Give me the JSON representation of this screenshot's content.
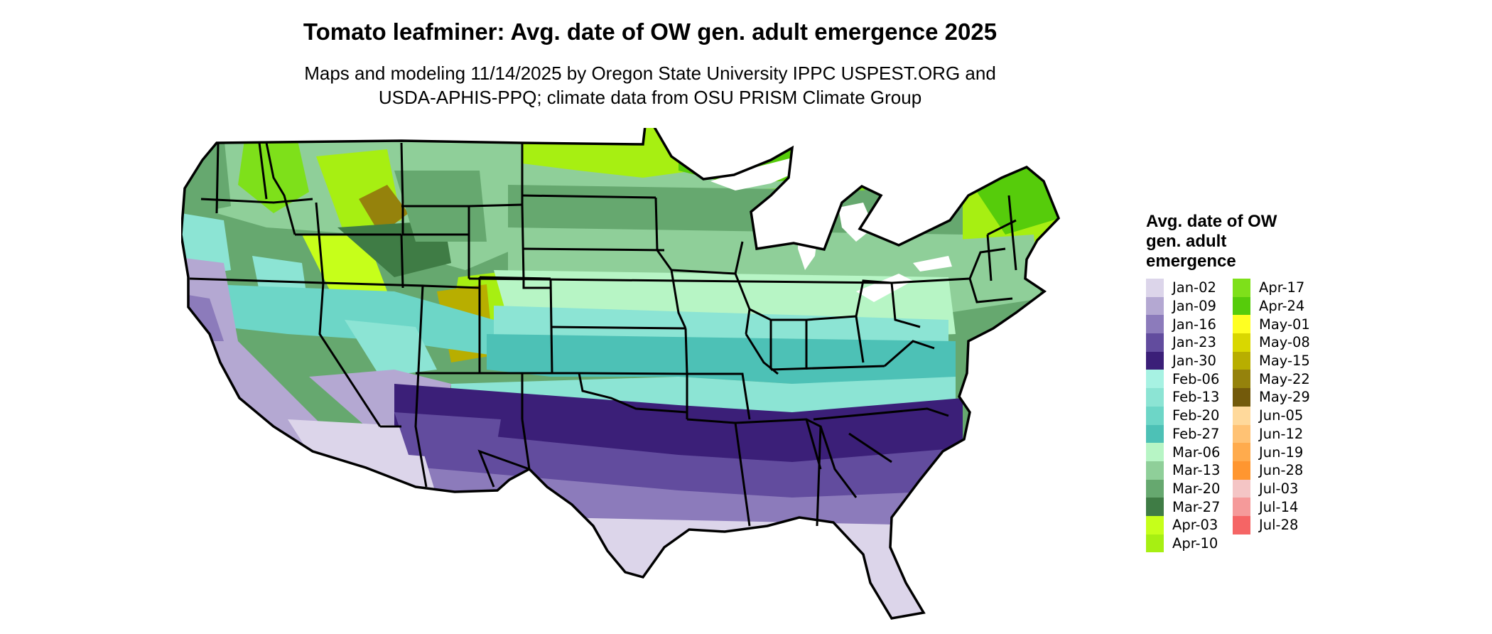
{
  "title": "Tomato leafminer: Avg. date of OW gen. adult emergence 2025",
  "subtitle": {
    "line1": "Maps and modeling 11/14/2025 by Oregon State University IPPC USPEST.ORG and",
    "line2": "USDA-APHIS-PPQ; climate data from OSU PRISM Climate Group"
  },
  "legend": {
    "title": "Avg. date of OW gen. adult emergence",
    "columns": [
      [
        {
          "label": "Jan-02",
          "color": "#dcd5ea"
        },
        {
          "label": "Jan-09",
          "color": "#b4a8d2"
        },
        {
          "label": "Jan-16",
          "color": "#8c7bbb"
        },
        {
          "label": "Jan-23",
          "color": "#624c9e"
        },
        {
          "label": "Jan-30",
          "color": "#3b1f78"
        },
        {
          "label": "Feb-06",
          "color": "#a7f2e3"
        },
        {
          "label": "Feb-13",
          "color": "#8ce4d4"
        },
        {
          "label": "Feb-20",
          "color": "#6dd6c7"
        },
        {
          "label": "Feb-27",
          "color": "#4dc1b6"
        },
        {
          "label": "Mar-06",
          "color": "#b7f5c5"
        },
        {
          "label": "Mar-13",
          "color": "#8fcf99"
        },
        {
          "label": "Mar-20",
          "color": "#66a86f"
        },
        {
          "label": "Mar-27",
          "color": "#3f7c45"
        },
        {
          "label": "Apr-03",
          "color": "#c6ff1a"
        },
        {
          "label": "Apr-10",
          "color": "#a7ef12"
        }
      ],
      [
        {
          "label": "Apr-17",
          "color": "#7ee01a"
        },
        {
          "label": "Apr-24",
          "color": "#56cc0b"
        },
        {
          "label": "May-01",
          "color": "#ffff22"
        },
        {
          "label": "May-08",
          "color": "#d9d700"
        },
        {
          "label": "May-15",
          "color": "#b8ae00"
        },
        {
          "label": "May-22",
          "color": "#95820c"
        },
        {
          "label": "May-29",
          "color": "#735a0b"
        },
        {
          "label": "Jun-05",
          "color": "#ffd99b"
        },
        {
          "label": "Jun-12",
          "color": "#ffc274"
        },
        {
          "label": "Jun-19",
          "color": "#ffab4d"
        },
        {
          "label": "Jun-28",
          "color": "#ff9630"
        },
        {
          "label": "Jul-03",
          "color": "#f4c5c5"
        },
        {
          "label": "Jul-14",
          "color": "#f59a9a"
        },
        {
          "label": "Jul-28",
          "color": "#f56565"
        }
      ]
    ]
  }
}
